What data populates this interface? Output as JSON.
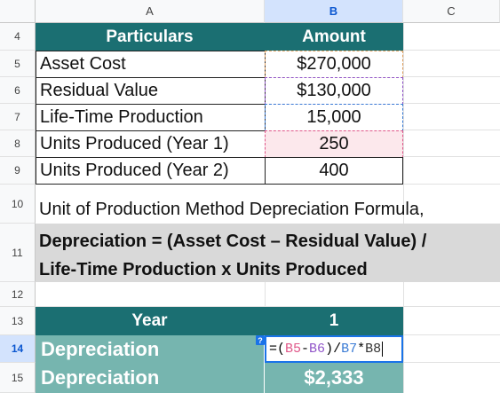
{
  "columns": [
    "A",
    "B",
    "C"
  ],
  "rows": [
    "4",
    "5",
    "6",
    "7",
    "8",
    "9",
    "10",
    "11",
    "12",
    "13",
    "14",
    "15"
  ],
  "table1": {
    "header": {
      "particulars": "Particulars",
      "amount": "Amount"
    },
    "items": [
      {
        "label": "Asset Cost",
        "value": "$270,000"
      },
      {
        "label": "Residual Value",
        "value": "$130,000"
      },
      {
        "label": "Life-Time Production",
        "value": "15,000"
      },
      {
        "label": "Units Produced (Year 1)",
        "value": "250"
      },
      {
        "label": "Units Produced (Year 2)",
        "value": "400"
      }
    ]
  },
  "row10_text": "Unit of Production Method Depreciation Formula,",
  "formula_text_line1": "Depreciation = (Asset Cost – Residual Value) /",
  "formula_text_line2": "Life-Time Production x Units Produced",
  "table2": {
    "header": {
      "year_label": "Year",
      "year_value": "1"
    },
    "row14_label": "Depreciation",
    "row15_label": "Depreciation",
    "row15_value": "$2,333"
  },
  "active_formula": {
    "eq": "=(",
    "r1": "B5",
    "minus": "-",
    "r2": "B6",
    "mid": ")/",
    "r3": "B7",
    "star": "*",
    "r4": "B8"
  },
  "help_marker": "?",
  "colors": {
    "teal_dark": "#1b6f72",
    "teal_light": "#76b5af",
    "gray_band": "#d9d9d9",
    "highlight_pink": "#fce8ec"
  }
}
